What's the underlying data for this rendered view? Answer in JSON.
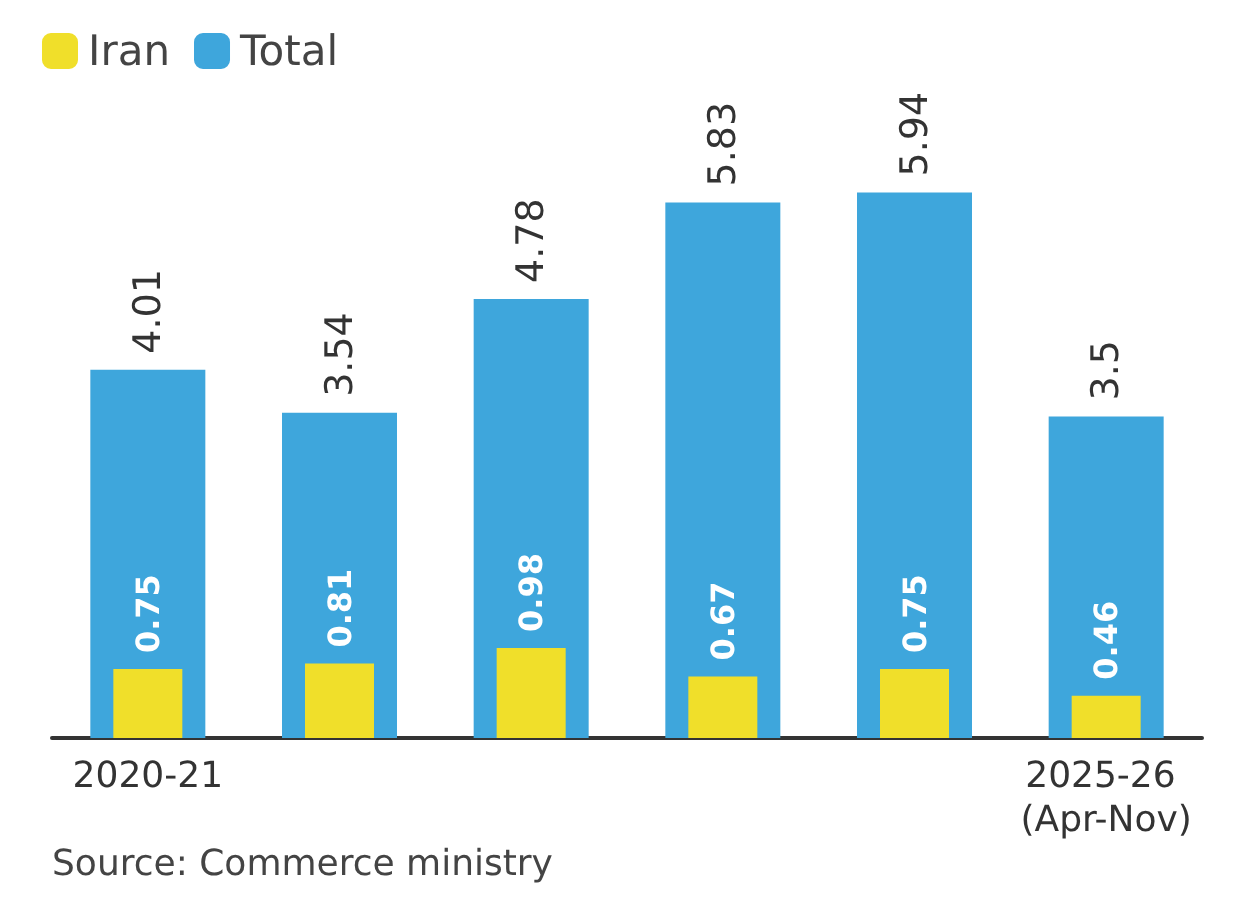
{
  "chart_data": {
    "type": "bar",
    "categories": [
      "2020-21",
      null,
      null,
      null,
      null,
      "2025-26 (Apr-Nov)"
    ],
    "series": [
      {
        "name": "Total",
        "color": "#3ea6dc",
        "values": [
          4.01,
          3.54,
          4.78,
          5.83,
          5.94,
          3.5
        ]
      },
      {
        "name": "Iran",
        "color": "#f0df2a",
        "values": [
          0.75,
          0.81,
          0.98,
          0.67,
          0.75,
          0.46
        ]
      }
    ],
    "data_labels": true,
    "legend": "top left",
    "grid": false,
    "annotations": [
      "Source: Commerce ministry"
    ]
  }
}
